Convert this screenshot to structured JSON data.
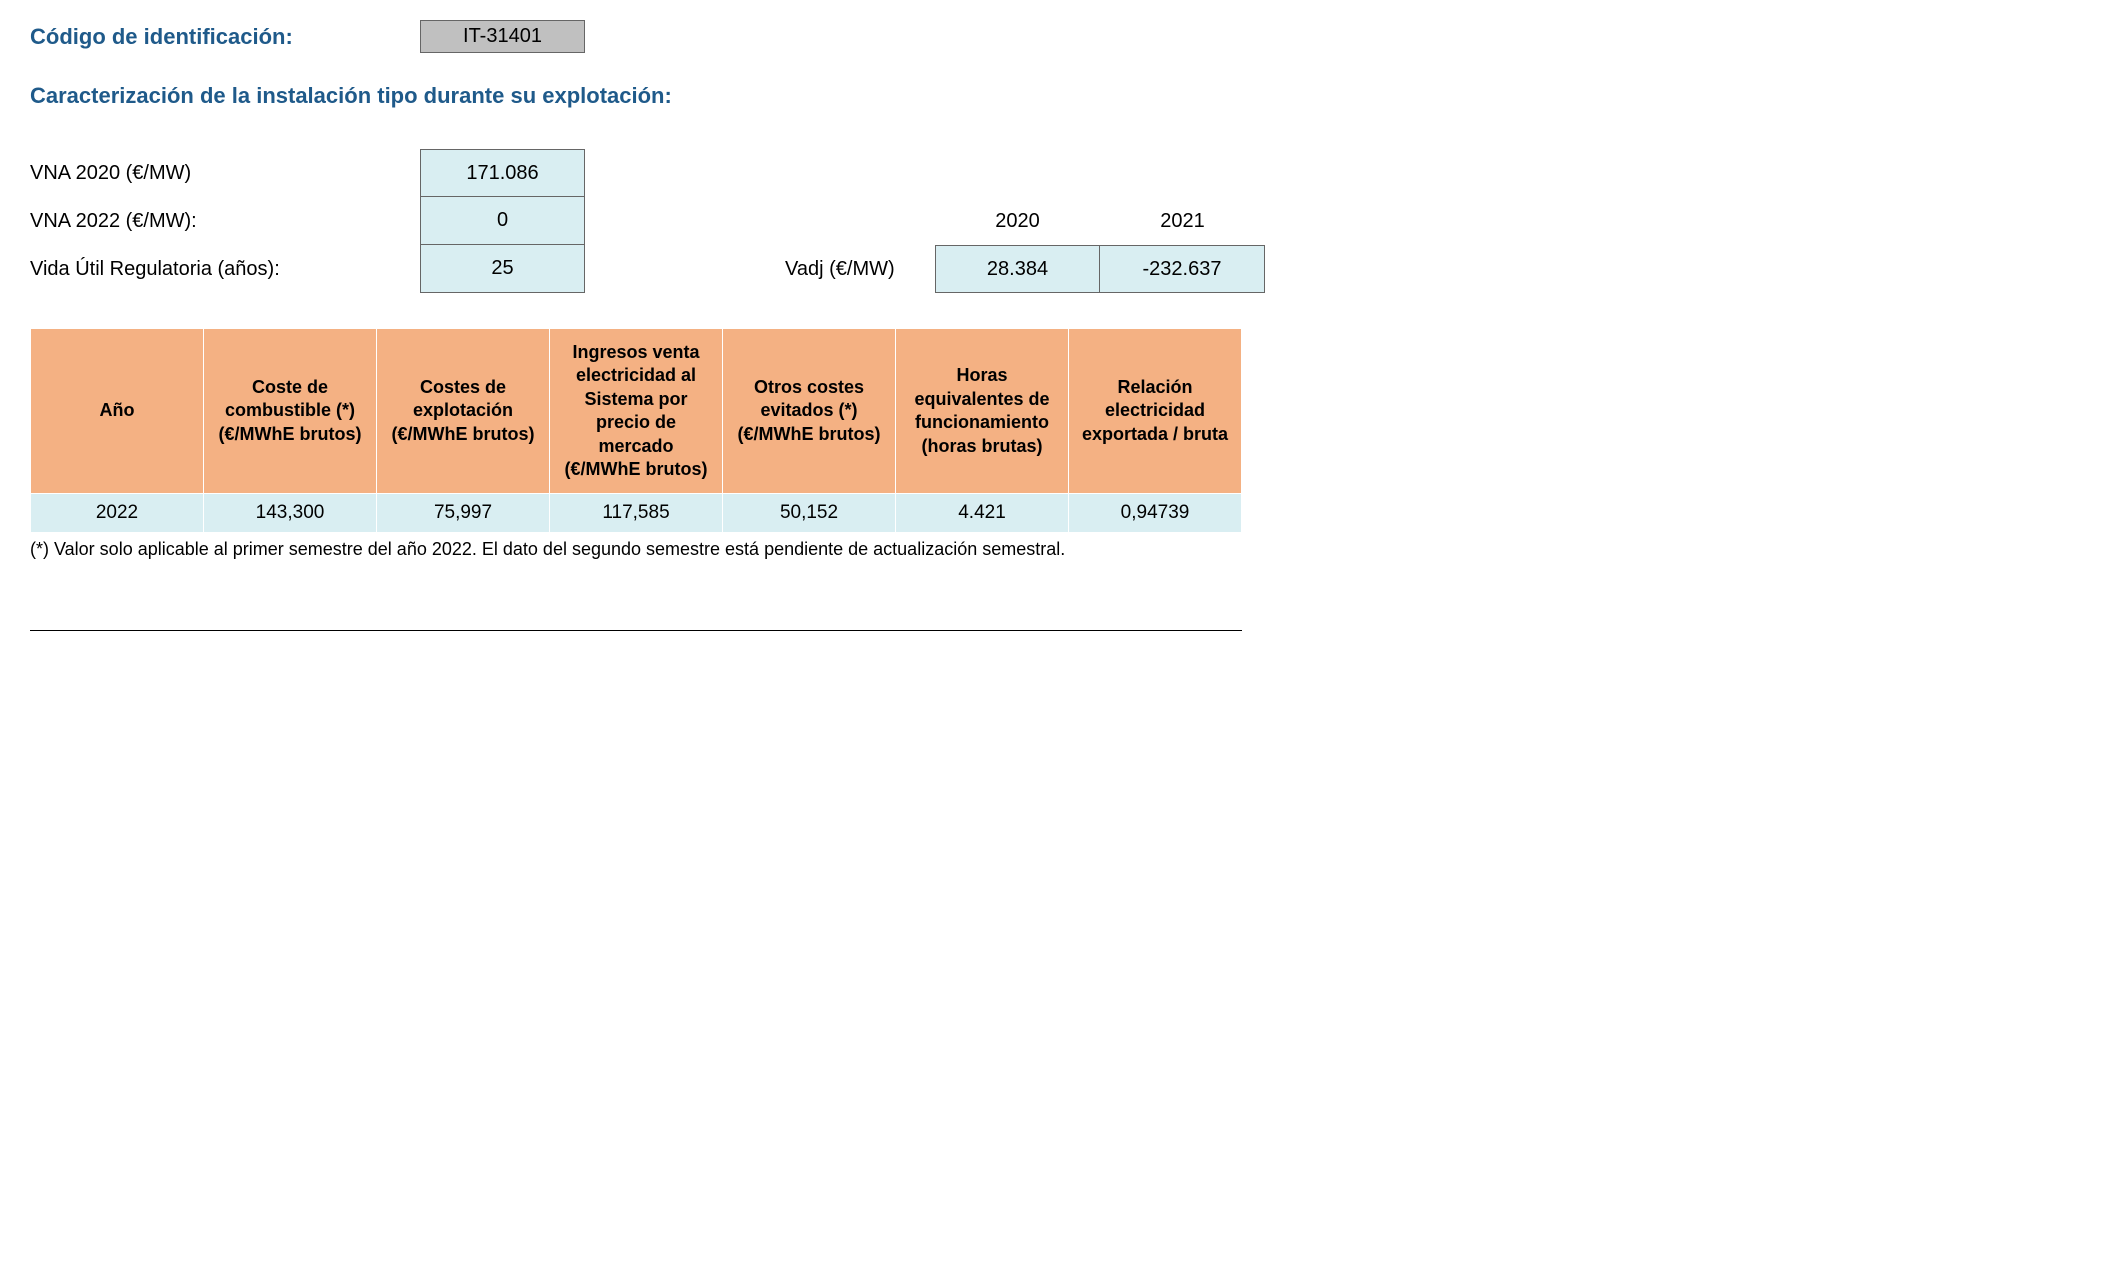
{
  "header": {
    "id_label": "Código de identificación:",
    "id_value": "IT-31401"
  },
  "section_title": "Caracterización de la instalación tipo durante su explotación:",
  "params": {
    "vna_2020_label": "VNA 2020 (€/MW)",
    "vna_2020_value": "171.086",
    "vna_2022_label": "VNA 2022 (€/MW):",
    "vna_2022_value": "0",
    "vida_util_label": "Vida Útil Regulatoria (años):",
    "vida_util_value": "25"
  },
  "vadj": {
    "label": "Vadj (€/MW)",
    "years": [
      "2020",
      "2021"
    ],
    "values": [
      "28.384",
      "-232.637"
    ]
  },
  "table": {
    "columns": [
      "Año",
      "Coste de combustible (*) (€/MWhE brutos)",
      "Costes de explotación (€/MWhE brutos)",
      "Ingresos venta electricidad al Sistema por precio de mercado (€/MWhE brutos)",
      "Otros costes evitados (*) (€/MWhE brutos)",
      "Horas equivalentes de funcionamiento (horas brutas)",
      "Relación electricidad exportada / bruta"
    ],
    "rows": [
      [
        "2022",
        "143,300",
        "75,997",
        "117,585",
        "50,152",
        "4.421",
        "0,94739"
      ]
    ],
    "header_bg": "#f4b183",
    "row_bg": "#d9eef2"
  },
  "footnote": "(*) Valor solo aplicable al primer semestre del año 2022. El dato del segundo semestre está pendiente de actualización semestral."
}
